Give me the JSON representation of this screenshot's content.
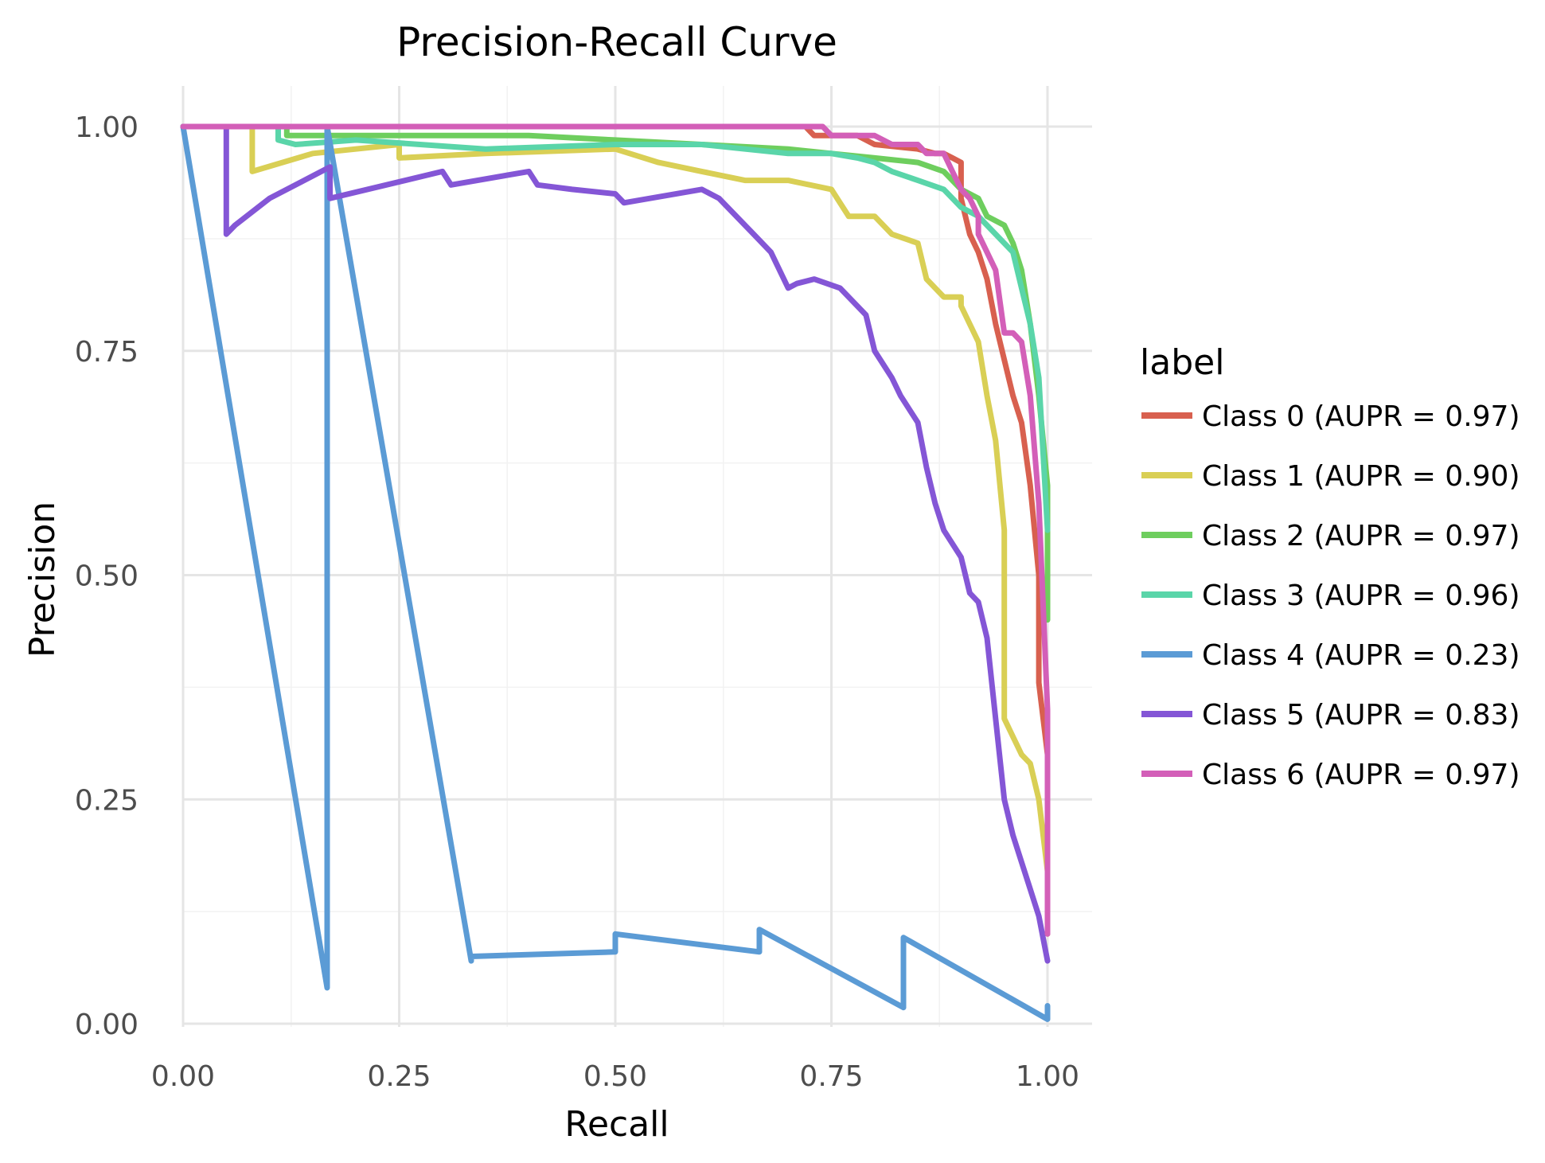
{
  "chart_data": {
    "type": "line",
    "title": "Precision-Recall Curve",
    "xlabel": "Recall",
    "ylabel": "Precision",
    "xlim": [
      0,
      1
    ],
    "ylim": [
      0,
      1
    ],
    "x_ticks": [
      0,
      0.25,
      0.5,
      0.75,
      1
    ],
    "x_tick_labels": [
      "0.00",
      "0.25",
      "0.50",
      "0.75",
      "1.00"
    ],
    "y_ticks": [
      0,
      0.25,
      0.5,
      0.75,
      1
    ],
    "y_tick_labels": [
      "0.00",
      "0.25",
      "0.50",
      "0.75",
      "1.00"
    ],
    "grid": true,
    "legend": {
      "title": "label",
      "position": "right"
    },
    "series": [
      {
        "name": "Class 0 (AUPR = 0.97)",
        "color": "#d8604f",
        "x": [
          0,
          0.72,
          0.73,
          0.78,
          0.8,
          0.85,
          0.87,
          0.88,
          0.89,
          0.9,
          0.9,
          0.91,
          0.92,
          0.93,
          0.94,
          0.95,
          0.96,
          0.97,
          0.98,
          0.99,
          0.99,
          1.0,
          1.0
        ],
        "y": [
          1,
          1,
          0.99,
          0.99,
          0.98,
          0.975,
          0.97,
          0.97,
          0.965,
          0.96,
          0.92,
          0.88,
          0.86,
          0.83,
          0.78,
          0.74,
          0.7,
          0.67,
          0.6,
          0.5,
          0.38,
          0.3,
          0.1
        ]
      },
      {
        "name": "Class 1 (AUPR = 0.90)",
        "color": "#d9cf55",
        "x": [
          0,
          0.08,
          0.08,
          0.15,
          0.25,
          0.25,
          0.35,
          0.5,
          0.55,
          0.6,
          0.65,
          0.7,
          0.75,
          0.77,
          0.8,
          0.82,
          0.85,
          0.86,
          0.88,
          0.9,
          0.9,
          0.92,
          0.93,
          0.94,
          0.95,
          0.95,
          0.97,
          0.98,
          0.99,
          1.0
        ],
        "y": [
          1,
          1,
          0.95,
          0.97,
          0.98,
          0.965,
          0.97,
          0.975,
          0.96,
          0.95,
          0.94,
          0.94,
          0.93,
          0.9,
          0.9,
          0.88,
          0.87,
          0.83,
          0.81,
          0.81,
          0.8,
          0.76,
          0.7,
          0.65,
          0.55,
          0.34,
          0.3,
          0.29,
          0.25,
          0.17
        ]
      },
      {
        "name": "Class 2 (AUPR = 0.97)",
        "color": "#6ece5e",
        "x": [
          0,
          0.12,
          0.12,
          0.3,
          0.4,
          0.5,
          0.6,
          0.7,
          0.75,
          0.8,
          0.85,
          0.88,
          0.9,
          0.92,
          0.93,
          0.95,
          0.96,
          0.97,
          0.98,
          0.99,
          1.0,
          1.0
        ],
        "y": [
          1,
          1,
          0.99,
          0.99,
          0.99,
          0.985,
          0.98,
          0.975,
          0.97,
          0.965,
          0.96,
          0.95,
          0.93,
          0.92,
          0.9,
          0.89,
          0.87,
          0.84,
          0.78,
          0.7,
          0.6,
          0.45
        ]
      },
      {
        "name": "Class 3 (AUPR = 0.96)",
        "color": "#5ad5a9",
        "x": [
          0,
          0.11,
          0.11,
          0.13,
          0.2,
          0.35,
          0.5,
          0.6,
          0.65,
          0.7,
          0.75,
          0.78,
          0.8,
          0.82,
          0.85,
          0.88,
          0.9,
          0.92,
          0.94,
          0.96,
          0.97,
          0.98,
          0.99,
          1.0
        ],
        "y": [
          1,
          1,
          0.985,
          0.98,
          0.985,
          0.975,
          0.98,
          0.98,
          0.975,
          0.97,
          0.97,
          0.965,
          0.96,
          0.95,
          0.94,
          0.93,
          0.91,
          0.9,
          0.88,
          0.86,
          0.82,
          0.78,
          0.72,
          0.55
        ]
      },
      {
        "name": "Class 4 (AUPR = 0.23)",
        "color": "#5b9bd5",
        "x": [
          0,
          0.1667,
          0.1667,
          0.3333,
          0.3333,
          0.5,
          0.5,
          0.6667,
          0.6667,
          0.8333,
          0.8333,
          1.0,
          1.0
        ],
        "y": [
          1,
          0.04,
          1.0,
          0.07,
          0.075,
          0.08,
          0.1,
          0.08,
          0.105,
          0.018,
          0.096,
          0.005,
          0.02
        ]
      },
      {
        "name": "Class 5 (AUPR = 0.83)",
        "color": "#8456d6",
        "x": [
          0,
          0.05,
          0.05,
          0.06,
          0.1,
          0.15,
          0.17,
          0.17,
          0.3,
          0.31,
          0.4,
          0.41,
          0.45,
          0.5,
          0.51,
          0.6,
          0.62,
          0.66,
          0.68,
          0.7,
          0.71,
          0.73,
          0.76,
          0.79,
          0.8,
          0.82,
          0.83,
          0.85,
          0.86,
          0.87,
          0.88,
          0.9,
          0.91,
          0.92,
          0.93,
          0.94,
          0.95,
          0.96,
          0.97,
          0.98,
          0.99,
          1.0
        ],
        "y": [
          1,
          1,
          0.88,
          0.89,
          0.92,
          0.945,
          0.955,
          0.92,
          0.95,
          0.935,
          0.95,
          0.935,
          0.93,
          0.925,
          0.915,
          0.93,
          0.92,
          0.88,
          0.86,
          0.82,
          0.825,
          0.83,
          0.82,
          0.79,
          0.75,
          0.72,
          0.7,
          0.67,
          0.62,
          0.58,
          0.55,
          0.52,
          0.48,
          0.47,
          0.43,
          0.34,
          0.25,
          0.21,
          0.18,
          0.15,
          0.12,
          0.07
        ]
      },
      {
        "name": "Class 6 (AUPR = 0.97)",
        "color": "#d35fb8",
        "x": [
          0,
          0.74,
          0.75,
          0.8,
          0.82,
          0.85,
          0.86,
          0.88,
          0.89,
          0.9,
          0.91,
          0.92,
          0.92,
          0.93,
          0.94,
          0.95,
          0.96,
          0.97,
          0.98,
          0.99,
          1.0,
          1.0
        ],
        "y": [
          1,
          1,
          0.99,
          0.99,
          0.98,
          0.98,
          0.97,
          0.97,
          0.95,
          0.93,
          0.92,
          0.9,
          0.88,
          0.86,
          0.84,
          0.77,
          0.77,
          0.76,
          0.7,
          0.58,
          0.35,
          0.1
        ]
      }
    ]
  }
}
